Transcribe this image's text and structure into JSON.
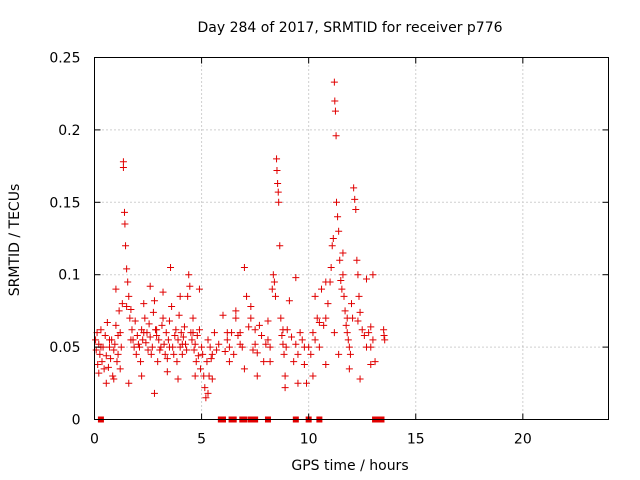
{
  "chart_data": {
    "type": "scatter",
    "title": "Day 284 of 2017, SRMTID for receiver p776",
    "xlabel": "GPS time / hours",
    "ylabel": "SRMTID / TECUs",
    "xlim": [
      0,
      24
    ],
    "ylim": [
      0,
      0.25
    ],
    "xticks": [
      0,
      5,
      10,
      15,
      20
    ],
    "xtick_labels": [
      "0",
      "5",
      "10",
      "15",
      "20"
    ],
    "yticks": [
      0,
      0.05,
      0.1,
      0.15,
      0.2,
      0.25
    ],
    "ytick_labels": [
      "0",
      "0.05",
      "0.1",
      "0.15",
      "0.2",
      "0.25"
    ],
    "grid": true,
    "marker": "+",
    "color": "#e00000",
    "zero_marker": "square",
    "series": [
      {
        "name": "SRMTID",
        "points": [
          [
            0.05,
            0.055
          ],
          [
            0.08,
            0.048
          ],
          [
            0.12,
            0.06
          ],
          [
            0.15,
            0.038
          ],
          [
            0.2,
            0.052
          ],
          [
            0.25,
            0.045
          ],
          [
            0.3,
            0.062
          ],
          [
            0.35,
            0.04
          ],
          [
            0.4,
            0.05
          ],
          [
            0.45,
            0.035
          ],
          [
            0.5,
            0.058
          ],
          [
            0.55,
            0.044
          ],
          [
            0.6,
            0.067
          ],
          [
            0.65,
            0.036
          ],
          [
            0.7,
            0.05
          ],
          [
            0.75,
            0.042
          ],
          [
            0.8,
            0.055
          ],
          [
            0.85,
            0.03
          ],
          [
            0.9,
            0.048
          ],
          [
            0.95,
            0.052
          ],
          [
            1.0,
            0.065
          ],
          [
            1.05,
            0.04
          ],
          [
            1.1,
            0.058
          ],
          [
            1.15,
            0.075
          ],
          [
            1.2,
            0.06
          ],
          [
            1.25,
            0.05
          ],
          [
            1.3,
            0.08
          ],
          [
            1.35,
            0.178
          ],
          [
            1.35,
            0.174
          ],
          [
            1.4,
            0.143
          ],
          [
            1.42,
            0.135
          ],
          [
            1.45,
            0.12
          ],
          [
            1.5,
            0.104
          ],
          [
            1.55,
            0.095
          ],
          [
            1.6,
            0.085
          ],
          [
            1.65,
            0.07
          ],
          [
            1.7,
            0.076
          ],
          [
            1.75,
            0.062
          ],
          [
            1.8,
            0.055
          ],
          [
            1.85,
            0.05
          ],
          [
            1.9,
            0.068
          ],
          [
            1.95,
            0.045
          ],
          [
            2.0,
            0.058
          ],
          [
            2.05,
            0.052
          ],
          [
            2.1,
            0.05
          ],
          [
            2.15,
            0.04
          ],
          [
            2.2,
            0.062
          ],
          [
            2.25,
            0.055
          ],
          [
            2.3,
            0.08
          ],
          [
            2.35,
            0.07
          ],
          [
            2.4,
            0.053
          ],
          [
            2.45,
            0.06
          ],
          [
            2.5,
            0.048
          ],
          [
            2.55,
            0.066
          ],
          [
            2.6,
            0.057
          ],
          [
            2.65,
            0.045
          ],
          [
            2.7,
            0.05
          ],
          [
            2.75,
            0.074
          ],
          [
            2.8,
            0.082
          ],
          [
            2.85,
            0.062
          ],
          [
            2.9,
            0.058
          ],
          [
            2.95,
            0.04
          ],
          [
            3.0,
            0.055
          ],
          [
            3.05,
            0.048
          ],
          [
            3.1,
            0.05
          ],
          [
            3.15,
            0.065
          ],
          [
            3.2,
            0.07
          ],
          [
            3.25,
            0.052
          ],
          [
            3.3,
            0.045
          ],
          [
            3.35,
            0.06
          ],
          [
            3.4,
            0.042
          ],
          [
            3.45,
            0.055
          ],
          [
            3.5,
            0.068
          ],
          [
            3.55,
            0.105
          ],
          [
            3.6,
            0.078
          ],
          [
            3.65,
            0.05
          ],
          [
            3.7,
            0.045
          ],
          [
            3.75,
            0.058
          ],
          [
            3.8,
            0.062
          ],
          [
            3.85,
            0.04
          ],
          [
            3.9,
            0.055
          ],
          [
            3.95,
            0.072
          ],
          [
            4.0,
            0.05
          ],
          [
            4.05,
            0.06
          ],
          [
            4.1,
            0.045
          ],
          [
            4.15,
            0.057
          ],
          [
            4.2,
            0.064
          ],
          [
            4.25,
            0.052
          ],
          [
            4.3,
            0.048
          ],
          [
            4.35,
            0.085
          ],
          [
            4.4,
            0.1
          ],
          [
            4.45,
            0.092
          ],
          [
            4.5,
            0.06
          ],
          [
            4.55,
            0.055
          ],
          [
            4.6,
            0.07
          ],
          [
            4.65,
            0.048
          ],
          [
            4.7,
            0.052
          ],
          [
            4.75,
            0.04
          ],
          [
            4.8,
            0.058
          ],
          [
            4.85,
            0.044
          ],
          [
            4.9,
            0.062
          ],
          [
            4.95,
            0.035
          ],
          [
            5.0,
            0.05
          ],
          [
            5.05,
            0.045
          ],
          [
            5.1,
            0.03
          ],
          [
            5.15,
            0.022
          ],
          [
            5.2,
            0.015
          ],
          [
            5.25,
            0.04
          ],
          [
            5.3,
            0.055
          ],
          [
            5.35,
            0.03
          ],
          [
            5.4,
            0.05
          ],
          [
            5.45,
            0.042
          ],
          [
            5.5,
            0.028
          ],
          [
            5.6,
            0.06
          ],
          [
            5.7,
            0.048
          ],
          [
            5.8,
            0.052
          ],
          [
            6.0,
            0.072
          ],
          [
            6.1,
            0.047
          ],
          [
            6.2,
            0.055
          ],
          [
            6.3,
            0.05
          ],
          [
            6.4,
            0.06
          ],
          [
            6.5,
            0.045
          ],
          [
            6.6,
            0.075
          ],
          [
            6.7,
            0.058
          ],
          [
            6.8,
            0.06
          ],
          [
            6.9,
            0.05
          ],
          [
            7.0,
            0.105
          ],
          [
            7.1,
            0.085
          ],
          [
            7.2,
            0.064
          ],
          [
            7.3,
            0.07
          ],
          [
            7.4,
            0.048
          ],
          [
            7.5,
            0.052
          ],
          [
            7.6,
            0.046
          ],
          [
            7.7,
            0.065
          ],
          [
            7.8,
            0.058
          ],
          [
            7.9,
            0.04
          ],
          [
            8.0,
            0.052
          ],
          [
            8.1,
            0.068
          ],
          [
            8.2,
            0.05
          ],
          [
            8.3,
            0.09
          ],
          [
            8.35,
            0.1
          ],
          [
            8.4,
            0.095
          ],
          [
            8.45,
            0.085
          ],
          [
            8.5,
            0.18
          ],
          [
            8.52,
            0.172
          ],
          [
            8.55,
            0.163
          ],
          [
            8.58,
            0.157
          ],
          [
            8.6,
            0.15
          ],
          [
            8.65,
            0.12
          ],
          [
            8.7,
            0.07
          ],
          [
            8.75,
            0.058
          ],
          [
            8.8,
            0.052
          ],
          [
            8.85,
            0.045
          ],
          [
            8.9,
            0.03
          ],
          [
            8.95,
            0.05
          ],
          [
            9.0,
            0.062
          ],
          [
            9.1,
            0.082
          ],
          [
            9.2,
            0.057
          ],
          [
            9.3,
            0.04
          ],
          [
            9.4,
            0.052
          ],
          [
            9.5,
            0.045
          ],
          [
            9.6,
            0.06
          ],
          [
            9.7,
            0.055
          ],
          [
            9.8,
            0.038
          ],
          [
            9.9,
            0.025
          ],
          [
            10.0,
            0.05
          ],
          [
            10.1,
            0.045
          ],
          [
            10.2,
            0.06
          ],
          [
            10.3,
            0.055
          ],
          [
            10.4,
            0.07
          ],
          [
            10.5,
            0.067
          ],
          [
            10.6,
            0.09
          ],
          [
            10.7,
            0.065
          ],
          [
            10.8,
            0.07
          ],
          [
            10.9,
            0.08
          ],
          [
            11.0,
            0.095
          ],
          [
            11.05,
            0.105
          ],
          [
            11.1,
            0.12
          ],
          [
            11.15,
            0.125
          ],
          [
            11.2,
            0.233
          ],
          [
            11.22,
            0.22
          ],
          [
            11.25,
            0.213
          ],
          [
            11.28,
            0.196
          ],
          [
            11.3,
            0.15
          ],
          [
            11.35,
            0.14
          ],
          [
            11.4,
            0.13
          ],
          [
            11.45,
            0.11
          ],
          [
            11.5,
            0.096
          ],
          [
            11.55,
            0.09
          ],
          [
            11.6,
            0.1
          ],
          [
            11.65,
            0.085
          ],
          [
            11.7,
            0.075
          ],
          [
            11.75,
            0.065
          ],
          [
            11.8,
            0.06
          ],
          [
            11.85,
            0.055
          ],
          [
            11.9,
            0.05
          ],
          [
            11.95,
            0.045
          ],
          [
            12.0,
            0.08
          ],
          [
            12.05,
            0.07
          ],
          [
            12.1,
            0.16
          ],
          [
            12.15,
            0.152
          ],
          [
            12.2,
            0.145
          ],
          [
            12.25,
            0.11
          ],
          [
            12.3,
            0.1
          ],
          [
            12.35,
            0.085
          ],
          [
            12.4,
            0.074
          ],
          [
            12.5,
            0.062
          ],
          [
            12.6,
            0.058
          ],
          [
            12.7,
            0.05
          ],
          [
            12.8,
            0.06
          ],
          [
            12.9,
            0.064
          ],
          [
            13.0,
            0.055
          ],
          [
            13.1,
            0.04
          ],
          [
            13.5,
            0.062
          ],
          [
            13.52,
            0.058
          ],
          [
            13.55,
            0.055
          ],
          [
            0.2,
            0.032
          ],
          [
            0.55,
            0.025
          ],
          [
            0.9,
            0.028
          ],
          [
            1.2,
            0.035
          ],
          [
            1.6,
            0.025
          ],
          [
            2.2,
            0.03
          ],
          [
            2.8,
            0.018
          ],
          [
            3.4,
            0.033
          ],
          [
            3.9,
            0.028
          ],
          [
            4.7,
            0.03
          ],
          [
            5.3,
            0.018
          ],
          [
            6.3,
            0.04
          ],
          [
            7.0,
            0.035
          ],
          [
            7.6,
            0.03
          ],
          [
            8.2,
            0.04
          ],
          [
            8.9,
            0.022
          ],
          [
            9.5,
            0.025
          ],
          [
            10.2,
            0.03
          ],
          [
            10.8,
            0.038
          ],
          [
            11.4,
            0.045
          ],
          [
            11.9,
            0.035
          ],
          [
            12.4,
            0.028
          ],
          [
            12.9,
            0.038
          ],
          [
            1.0,
            0.09
          ],
          [
            1.5,
            0.078
          ],
          [
            2.6,
            0.092
          ],
          [
            3.2,
            0.088
          ],
          [
            4.0,
            0.085
          ],
          [
            4.9,
            0.09
          ],
          [
            6.6,
            0.07
          ],
          [
            7.3,
            0.078
          ],
          [
            9.4,
            0.098
          ],
          [
            10.3,
            0.085
          ],
          [
            10.8,
            0.095
          ],
          [
            11.6,
            0.115
          ],
          [
            12.7,
            0.097
          ],
          [
            13.0,
            0.1
          ],
          [
            0.3,
            0.05
          ],
          [
            0.7,
            0.055
          ],
          [
            1.1,
            0.045
          ],
          [
            1.7,
            0.055
          ],
          [
            2.3,
            0.06
          ],
          [
            2.9,
            0.062
          ],
          [
            3.5,
            0.05
          ],
          [
            4.1,
            0.052
          ],
          [
            4.6,
            0.06
          ],
          [
            5.5,
            0.045
          ],
          [
            6.2,
            0.06
          ],
          [
            6.8,
            0.052
          ],
          [
            7.5,
            0.062
          ],
          [
            8.1,
            0.055
          ],
          [
            8.8,
            0.062
          ],
          [
            9.8,
            0.05
          ],
          [
            10.5,
            0.05
          ],
          [
            11.2,
            0.06
          ],
          [
            11.8,
            0.07
          ],
          [
            12.3,
            0.068
          ],
          [
            12.9,
            0.05
          ]
        ]
      }
    ],
    "zero_points": [
      0.3,
      5.9,
      6.0,
      6.4,
      6.5,
      6.9,
      7.0,
      7.3,
      7.4,
      7.5,
      8.1,
      9.4,
      10.0,
      10.5,
      13.1,
      13.2,
      13.3,
      13.4
    ]
  }
}
